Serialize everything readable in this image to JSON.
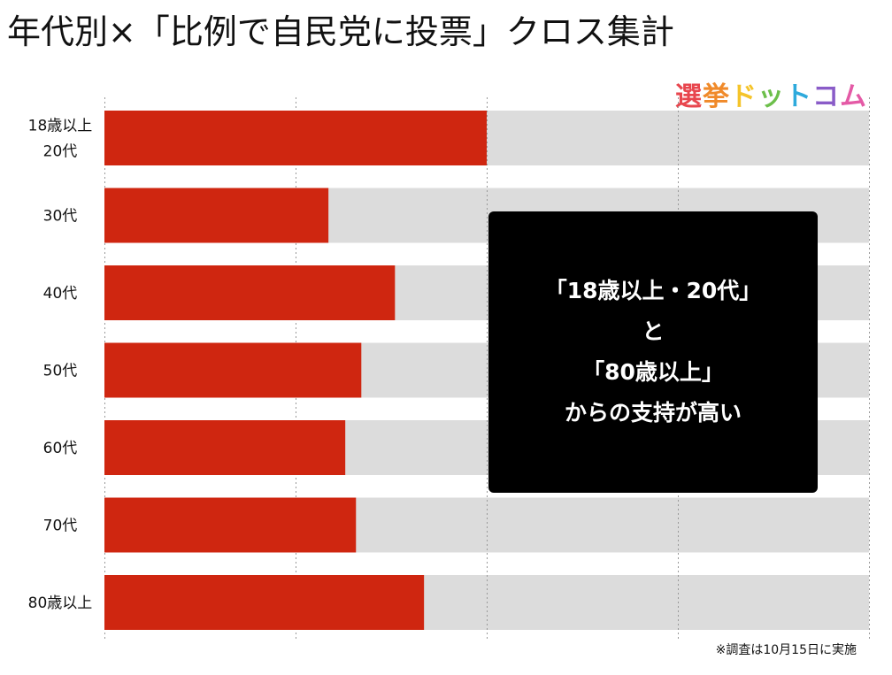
{
  "title": "年代別×「比例で自民党に投票」クロス集計",
  "logo": {
    "chars": [
      "選",
      "挙",
      "ド",
      "ッ",
      "ト",
      "コ",
      "ム"
    ],
    "colors": [
      "#e8464e",
      "#f08a2a",
      "#f5c42a",
      "#6cbf4a",
      "#2eaadc",
      "#8a5cc8",
      "#e45aa6"
    ]
  },
  "callout": {
    "lines": [
      "「18歳以上・20代」",
      "と",
      "「80歳以上」",
      "からの支持が高い"
    ]
  },
  "footnote": "※調査は10月15日に実施",
  "chart_data": {
    "type": "bar",
    "orientation": "horizontal",
    "categories": [
      [
        "18歳以上",
        "20代"
      ],
      [
        "30代"
      ],
      [
        "40代"
      ],
      [
        "50代"
      ],
      [
        "60代"
      ],
      [
        "70代"
      ],
      [
        "80歳以上"
      ]
    ],
    "values": [
      50,
      29.3,
      38,
      33.6,
      31.5,
      32.9,
      41.8
    ],
    "xlim": [
      0,
      100
    ],
    "grid": true,
    "colors": {
      "bar": "#cf2610",
      "track": "#dcdcdc",
      "grid": "#999999"
    }
  }
}
